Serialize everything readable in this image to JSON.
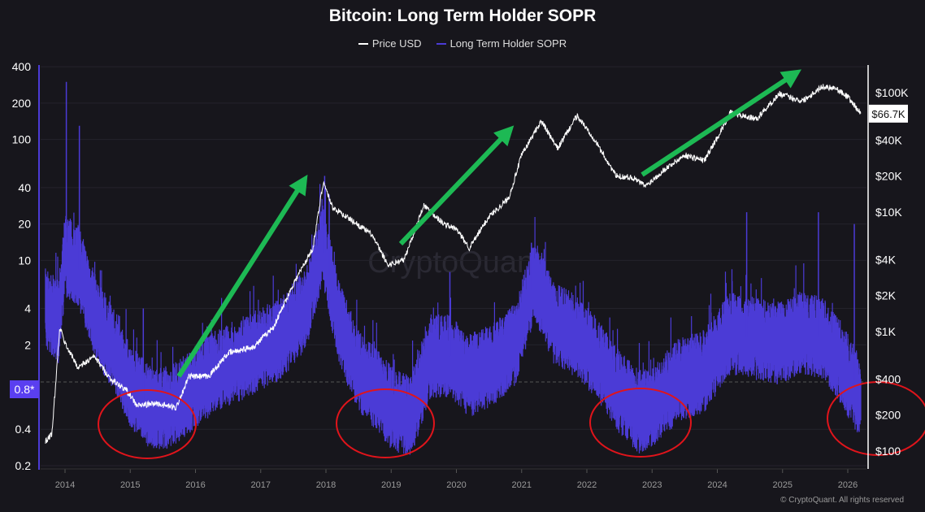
{
  "chart_data": {
    "type": "line",
    "title": "Bitcoin: Long Term Holder SOPR",
    "legend": {
      "placement": "top",
      "entries": [
        "Price USD",
        "Long Term Holder SOPR"
      ]
    },
    "colors": {
      "price": "#ffffff",
      "sopr": "#4b3bd6",
      "arrows": "#1db954",
      "circles": "#e0141b",
      "background": "#17161c"
    },
    "x_ticks": [
      "2014",
      "2015",
      "2016",
      "2017",
      "2018",
      "2019",
      "2020",
      "2021",
      "2022",
      "2023",
      "2024",
      "2025",
      "2026"
    ],
    "left_axis": {
      "scale": "log",
      "range": [
        0.2,
        400
      ],
      "ticks": [
        "400",
        "200",
        "100",
        "40",
        "20",
        "10",
        "4",
        "2",
        "0.4",
        "0.2"
      ],
      "marker_label": "0.8*",
      "marker_value": 0.8
    },
    "right_axis": {
      "scale": "log",
      "range": [
        100,
        140000
      ],
      "ticks": [
        "$100K",
        "$40K",
        "$20K",
        "$10K",
        "$4K",
        "$2K",
        "$1K",
        "$400",
        "$200",
        "$100"
      ],
      "current_label": "$66.7K",
      "current_value": 66700
    },
    "grid": true,
    "series": [
      {
        "name": "Price USD",
        "axis": "right",
        "x": [
          2013.7,
          2013.8,
          2013.92,
          2014.0,
          2014.2,
          2014.45,
          2014.7,
          2014.95,
          2015.1,
          2015.4,
          2015.7,
          2015.9,
          2016.2,
          2016.5,
          2016.9,
          2017.2,
          2017.5,
          2017.8,
          2017.96,
          2018.1,
          2018.4,
          2018.7,
          2018.95,
          2019.2,
          2019.5,
          2019.8,
          2020.0,
          2020.2,
          2020.5,
          2020.8,
          2021.0,
          2021.3,
          2021.55,
          2021.85,
          2022.1,
          2022.45,
          2022.7,
          2022.9,
          2023.2,
          2023.5,
          2023.8,
          2024.0,
          2024.2,
          2024.6,
          2024.95,
          2025.3,
          2025.6,
          2025.8,
          2026.0,
          2026.2
        ],
        "y": [
          120,
          140,
          1080,
          800,
          500,
          620,
          400,
          320,
          240,
          250,
          230,
          420,
          420,
          660,
          750,
          1100,
          2500,
          5000,
          18000,
          11000,
          8500,
          6500,
          3600,
          4000,
          11500,
          8000,
          7200,
          5000,
          9200,
          13000,
          30000,
          58000,
          34000,
          64000,
          42000,
          20000,
          19500,
          16500,
          23000,
          30000,
          27000,
          42000,
          68000,
          60000,
          98000,
          85000,
          112000,
          110000,
          92000,
          66700
        ]
      },
      {
        "name": "Long Term Holder SOPR",
        "axis": "left",
        "x": [
          2013.7,
          2013.9,
          2014.0,
          2014.2,
          2014.5,
          2014.8,
          2015.0,
          2015.3,
          2015.6,
          2015.9,
          2016.3,
          2016.8,
          2017.3,
          2017.7,
          2017.95,
          2018.2,
          2018.5,
          2018.8,
          2019.0,
          2019.3,
          2019.6,
          2019.9,
          2020.2,
          2020.6,
          2020.9,
          2021.2,
          2021.5,
          2021.9,
          2022.2,
          2022.5,
          2022.8,
          2023.0,
          2023.4,
          2023.8,
          2024.2,
          2024.6,
          2024.9,
          2025.3,
          2025.6,
          2025.9,
          2026.2
        ],
        "y": [
          4,
          3,
          11,
          9,
          3,
          1.6,
          0.9,
          0.6,
          0.6,
          0.8,
          1.2,
          1.6,
          2.2,
          4,
          14,
          3,
          1.2,
          0.8,
          0.6,
          0.5,
          1.6,
          1.6,
          1.1,
          1.4,
          2,
          7,
          3,
          2.2,
          1.4,
          0.8,
          0.55,
          0.6,
          1,
          1.2,
          2.5,
          2.2,
          2.0,
          2.5,
          2.3,
          1.4,
          0.7
        ]
      },
      {
        "axis": "left",
        "x": [
          2014.02,
          2014.22,
          2015.2,
          2017.98,
          2018.05,
          2019.9,
          2021.15,
          2024.45,
          2025.55,
          2026.1
        ],
        "y": [
          300,
          130,
          4,
          50,
          35,
          8,
          14,
          25,
          25,
          20
        ]
      }
    ],
    "annotations": {
      "arrows": [
        {
          "from": 2015.8,
          "to": 2017.7
        },
        {
          "from": 2019.15,
          "to": 2020.8
        },
        {
          "from": 2022.85,
          "to": 2025.2
        }
      ],
      "circles": [
        "2015",
        "2019",
        "2022.8",
        "2026"
      ]
    }
  },
  "watermark": "CryptoQuant",
  "footer": "© CryptoQuant. All rights reserved"
}
